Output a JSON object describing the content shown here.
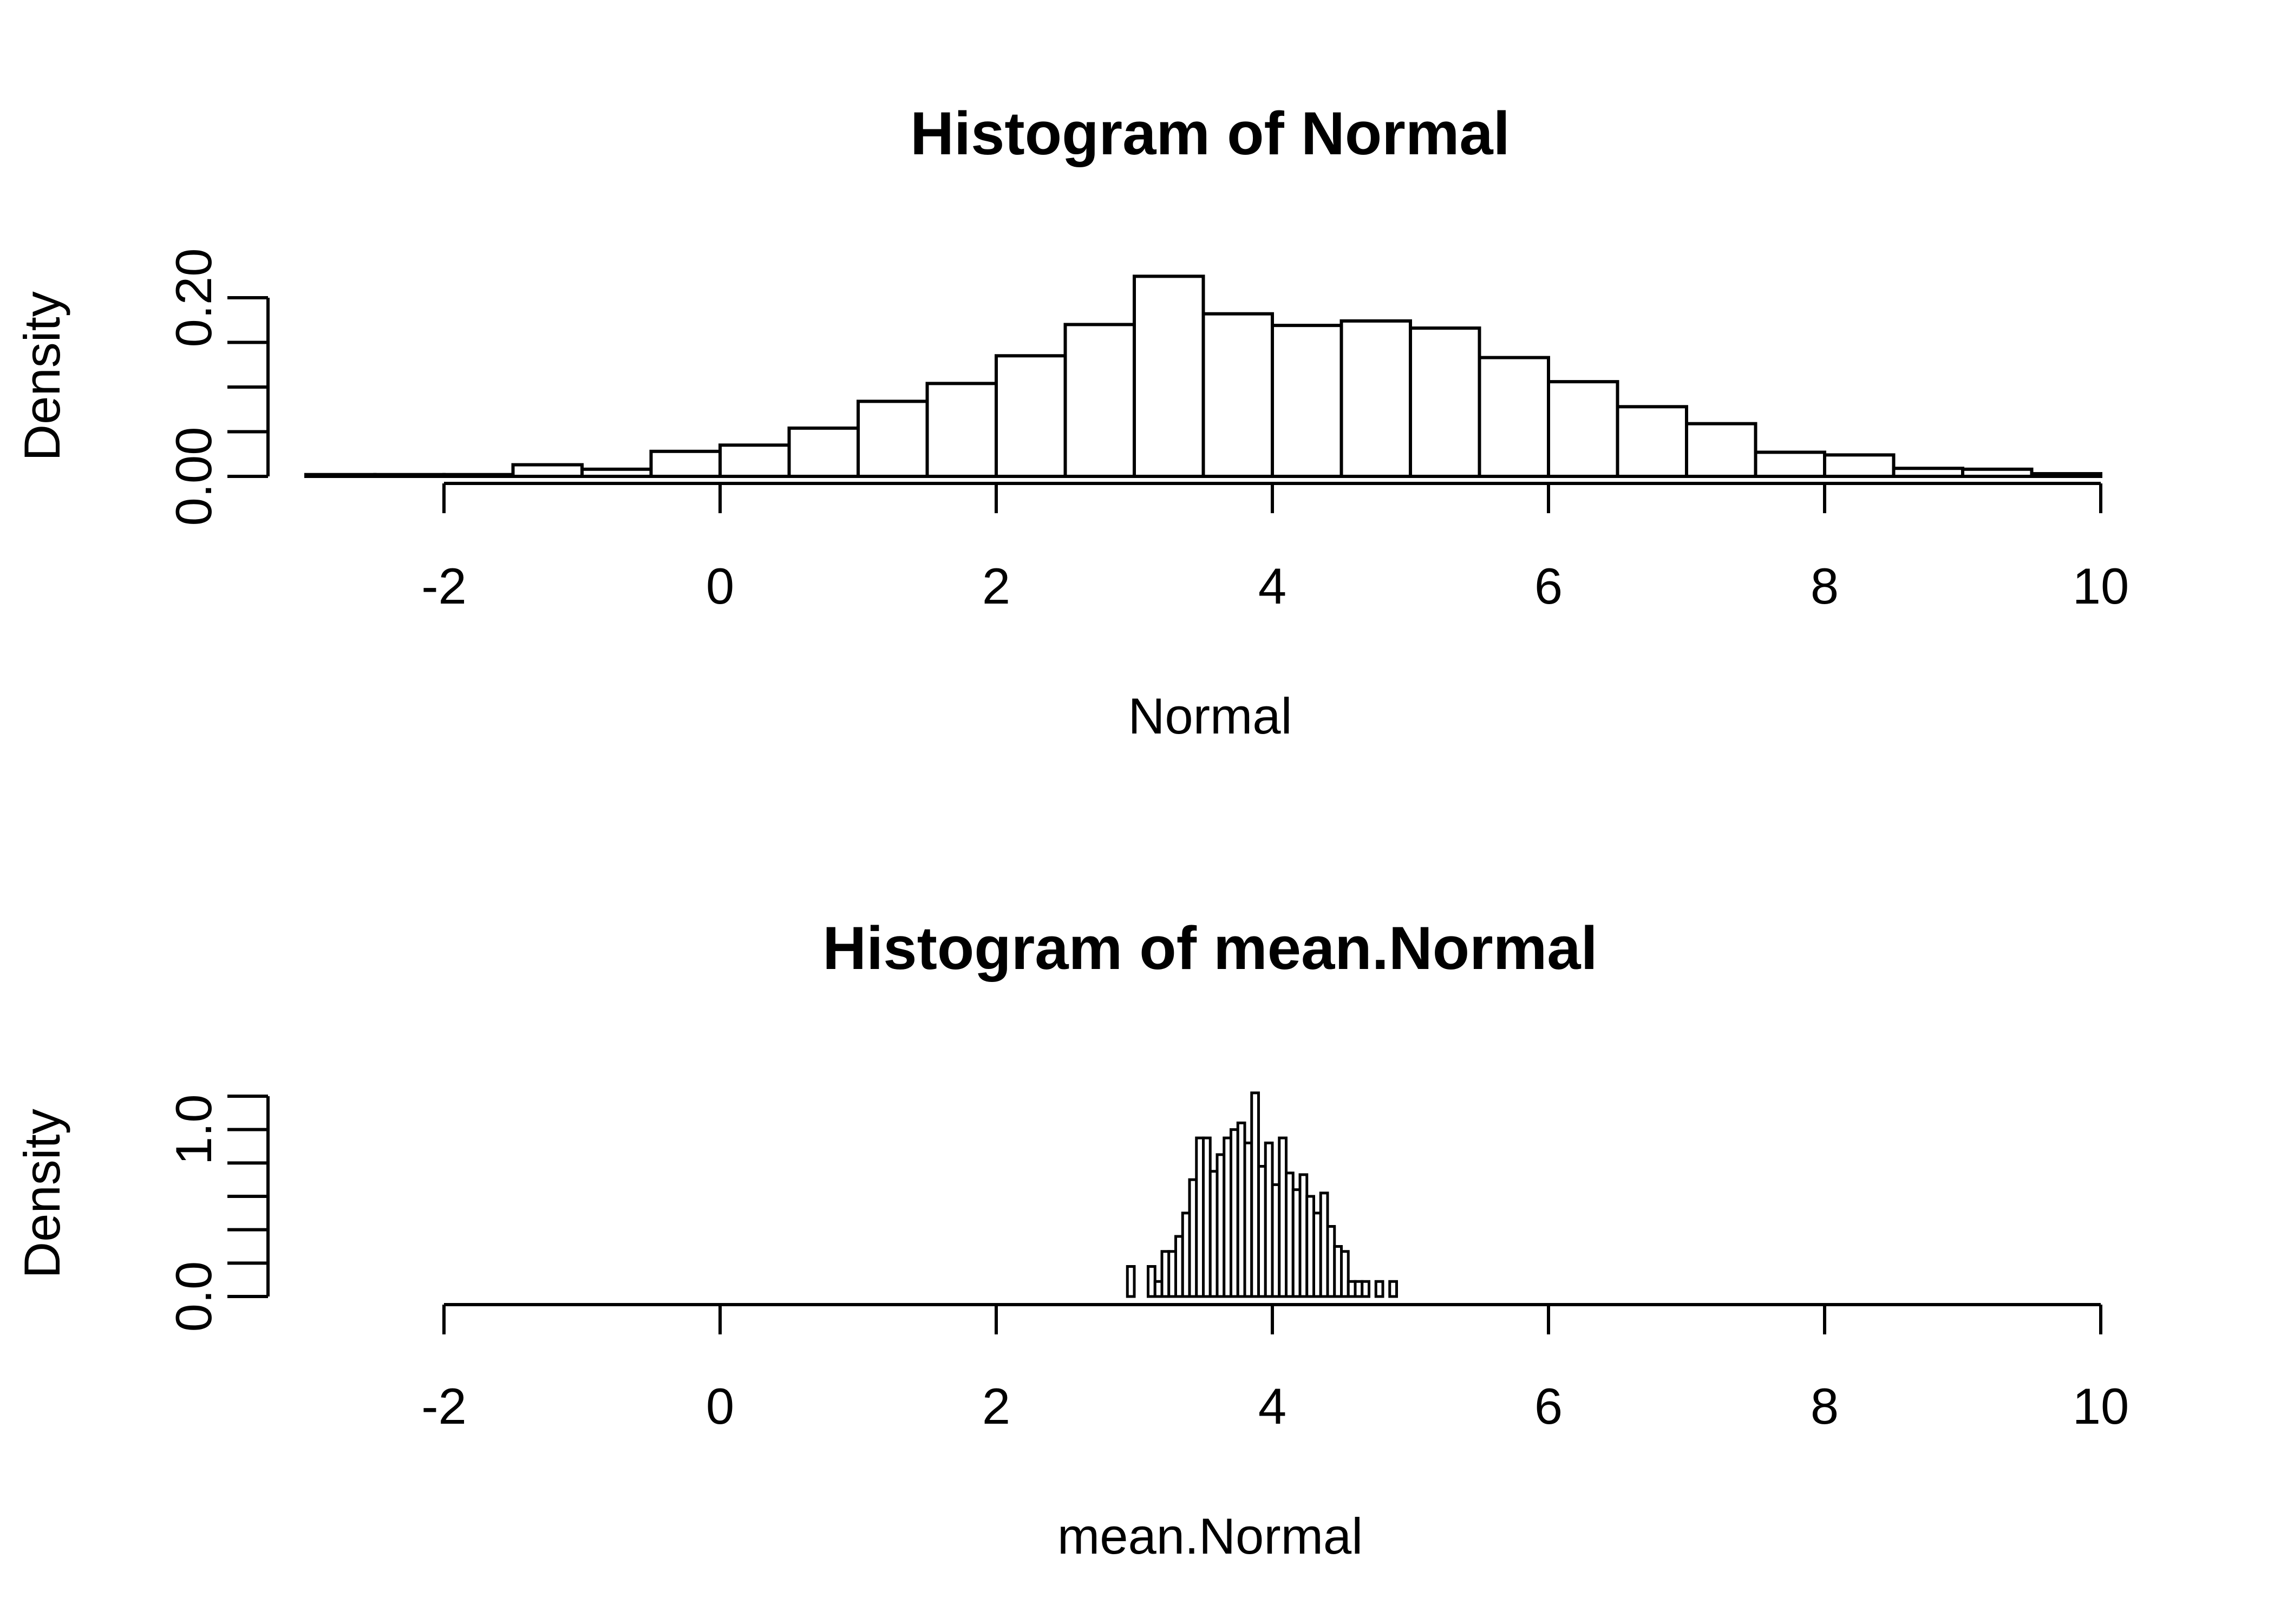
{
  "chart_data": [
    {
      "type": "bar",
      "title": "Histogram of Normal",
      "xlabel": "Normal",
      "ylabel": "Density",
      "xlim": [
        -2,
        10
      ],
      "ylim": [
        0,
        0.2
      ],
      "x_ticks": [
        -2,
        0,
        2,
        4,
        6,
        8,
        10
      ],
      "y_ticks": [
        0,
        0.05,
        0.1,
        0.15,
        0.2
      ],
      "y_tick_labels": [
        "0.00",
        "",
        "",
        "",
        "0.20"
      ],
      "grid": false,
      "bin_width": 0.5,
      "bin_starts": [
        -3.0,
        -2.5,
        -2.0,
        -1.5,
        -1.0,
        -0.5,
        0.0,
        0.5,
        1.0,
        1.5,
        2.0,
        2.5,
        3.0,
        3.5,
        4.0,
        4.5,
        5.0,
        5.5,
        6.0,
        6.5,
        7.0,
        7.5,
        8.0,
        8.5,
        9.0,
        9.5
      ],
      "values": [
        0.002,
        0.002,
        0.002,
        0.013,
        0.008,
        0.028,
        0.035,
        0.054,
        0.084,
        0.104,
        0.135,
        0.17,
        0.224,
        0.182,
        0.169,
        0.174,
        0.166,
        0.133,
        0.106,
        0.078,
        0.059,
        0.027,
        0.024,
        0.009,
        0.008,
        0.003
      ]
    },
    {
      "type": "bar",
      "title": "Histogram of mean.Normal",
      "xlabel": "mean.Normal",
      "ylabel": "Density",
      "xlim": [
        -2,
        10
      ],
      "ylim": [
        0,
        1.2
      ],
      "x_ticks": [
        -2,
        0,
        2,
        4,
        6,
        8,
        10
      ],
      "y_ticks": [
        0,
        0.2,
        0.4,
        0.6,
        0.8,
        1.0,
        1.2
      ],
      "y_tick_labels": [
        "0.0",
        "",
        "",
        "",
        "",
        "1.0",
        ""
      ],
      "grid": false,
      "bin_width": 0.05,
      "bin_starts": [
        2.95,
        3.0,
        3.05,
        3.1,
        3.15,
        3.2,
        3.25,
        3.3,
        3.35,
        3.4,
        3.45,
        3.5,
        3.55,
        3.6,
        3.65,
        3.7,
        3.75,
        3.8,
        3.85,
        3.9,
        3.95,
        4.0,
        4.05,
        4.1,
        4.15,
        4.2,
        4.25,
        4.3,
        4.35,
        4.4,
        4.45,
        4.5,
        4.55,
        4.6,
        4.65,
        4.7,
        4.75,
        4.8,
        4.85,
        4.9
      ],
      "values": [
        0.18,
        0.0,
        0.0,
        0.18,
        0.09,
        0.27,
        0.27,
        0.36,
        0.5,
        0.7,
        0.95,
        0.95,
        0.75,
        0.85,
        0.95,
        1.0,
        1.04,
        0.92,
        1.22,
        0.78,
        0.92,
        0.67,
        0.95,
        0.74,
        0.64,
        0.73,
        0.6,
        0.5,
        0.62,
        0.42,
        0.3,
        0.27,
        0.09,
        0.09,
        0.09,
        0.0,
        0.09,
        0.0,
        0.09,
        0.0
      ]
    }
  ]
}
